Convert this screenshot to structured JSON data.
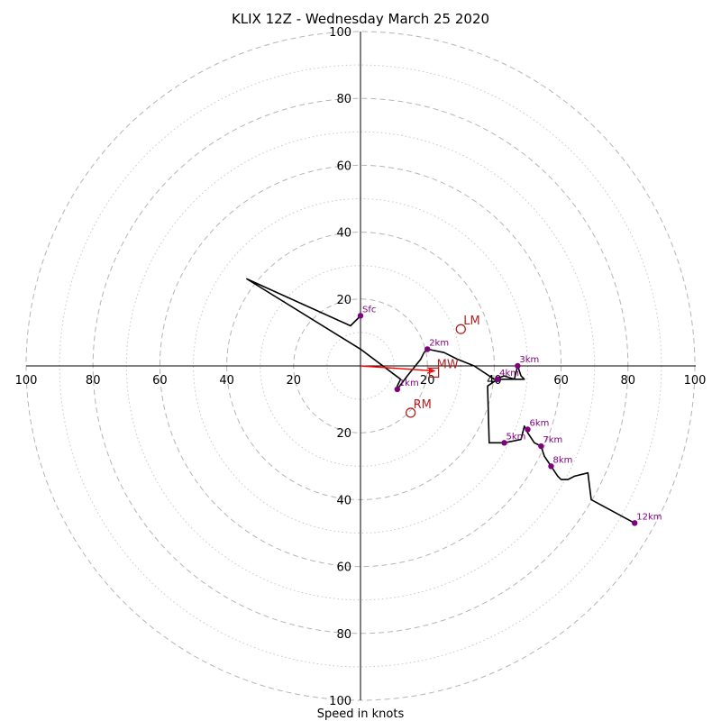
{
  "chart_data": {
    "type": "hodograph",
    "title": "KLIX 12Z - Wednesday March 25 2020",
    "xlabel": "Speed in knots",
    "xlim": [
      -100,
      100
    ],
    "ylim": [
      -100,
      100
    ],
    "rings_major": [
      20,
      40,
      60,
      80,
      100
    ],
    "rings_minor": [
      10,
      30,
      50,
      70,
      90
    ],
    "x_tick_labels": [
      "100",
      "80",
      "60",
      "40",
      "20",
      "20",
      "40",
      "60",
      "80",
      "100"
    ],
    "x_tick_values": [
      -100,
      -80,
      -60,
      -40,
      -20,
      20,
      40,
      60,
      80,
      100
    ],
    "y_tick_labels": [
      "100",
      "80",
      "60",
      "40",
      "20",
      "20",
      "40",
      "60",
      "80",
      "100"
    ],
    "y_tick_values": [
      100,
      80,
      60,
      40,
      20,
      -20,
      -40,
      -60,
      -80,
      -100
    ],
    "grid": true,
    "hodograph_trace": [
      [
        0,
        15
      ],
      [
        -3,
        12
      ],
      [
        -34,
        26
      ],
      [
        0,
        5
      ],
      [
        12,
        -4
      ],
      [
        11,
        -6
      ],
      [
        11,
        -7
      ],
      [
        14,
        -3
      ],
      [
        18,
        2
      ],
      [
        19,
        4
      ],
      [
        20,
        5
      ],
      [
        25,
        4
      ],
      [
        29,
        2
      ],
      [
        34,
        0
      ],
      [
        40,
        -4
      ],
      [
        43,
        -3
      ],
      [
        46,
        -4
      ],
      [
        47,
        0
      ],
      [
        48,
        -3
      ],
      [
        49,
        -4
      ],
      [
        44,
        -4
      ],
      [
        41,
        -4
      ],
      [
        38,
        -6
      ],
      [
        38.5,
        -23
      ],
      [
        43,
        -23
      ],
      [
        48,
        -22
      ],
      [
        49,
        -18
      ],
      [
        50,
        -20
      ],
      [
        52,
        -23
      ],
      [
        54,
        -24
      ],
      [
        55,
        -27
      ],
      [
        57,
        -30
      ],
      [
        59,
        -33
      ],
      [
        60,
        -34
      ],
      [
        62,
        -34
      ],
      [
        64,
        -33
      ],
      [
        68,
        -32
      ],
      [
        69,
        -40
      ],
      [
        82,
        -47
      ]
    ],
    "height_markers": [
      {
        "label": "Sfc",
        "u": 0,
        "v": 15
      },
      {
        "label": "1km",
        "u": 11,
        "v": -7
      },
      {
        "label": "2km",
        "u": 20,
        "v": 5
      },
      {
        "label": "3km",
        "u": 47,
        "v": 0
      },
      {
        "label": "4km",
        "u": 41,
        "v": -4
      },
      {
        "label": "5km",
        "u": 43,
        "v": -23
      },
      {
        "label": "6km",
        "u": 50,
        "v": -19
      },
      {
        "label": "7km",
        "u": 54,
        "v": -24
      },
      {
        "label": "8km",
        "u": 57,
        "v": -30
      },
      {
        "label": "12km",
        "u": 82,
        "v": -47
      }
    ],
    "storm_motion": [
      {
        "label": "LM",
        "u": 30,
        "v": 11,
        "marker": "circle"
      },
      {
        "label": "RM",
        "u": 15,
        "v": -14,
        "marker": "circle"
      },
      {
        "label": "MW",
        "u": 22,
        "v": -2,
        "marker": "square"
      }
    ],
    "shear_vector": {
      "from": [
        0,
        0
      ],
      "to": [
        22,
        -1.5
      ]
    },
    "colors": {
      "trace": "#000000",
      "markers": "#800080",
      "storm_motion": "#b22222",
      "shear": "#ff0000",
      "grid": "#b5b5b5"
    }
  }
}
